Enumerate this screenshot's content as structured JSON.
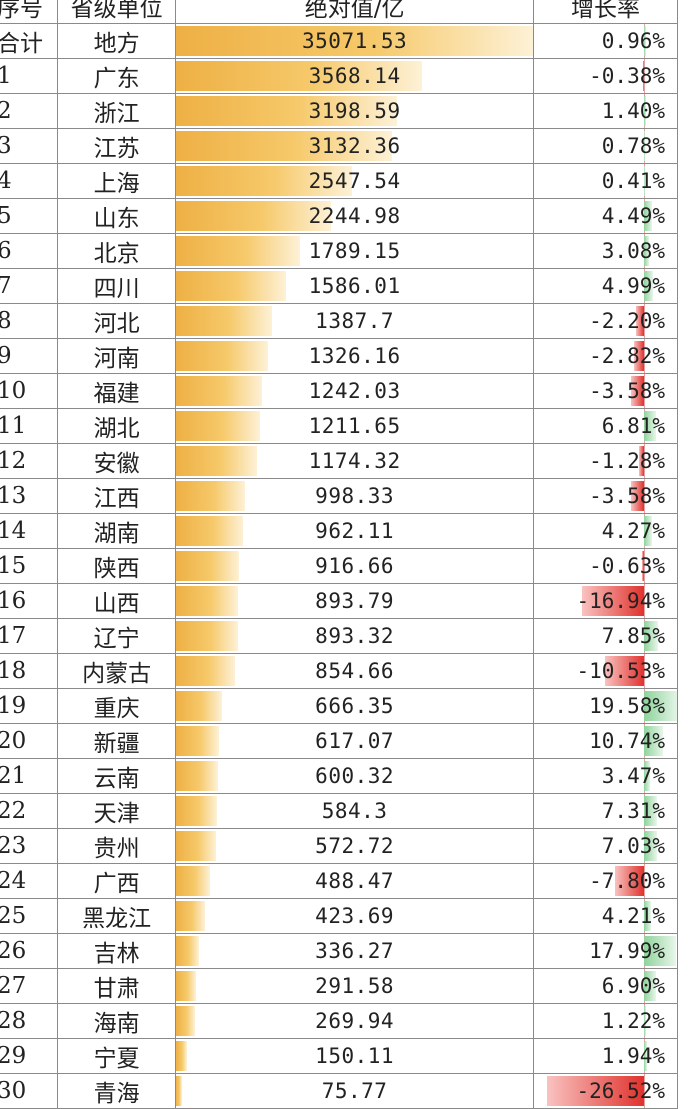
{
  "header": {
    "index": "序号",
    "province": "省级单位",
    "absolute": "绝对值/亿",
    "growth": "增长率"
  },
  "total": {
    "index": "合计",
    "province": "地方",
    "absolute": "35071.53",
    "growth": "0.96%"
  },
  "rows": [
    {
      "index": "1",
      "province": "广东",
      "absolute": "3568.14",
      "growth": "-0.38%"
    },
    {
      "index": "2",
      "province": "浙江",
      "absolute": "3198.59",
      "growth": "1.40%"
    },
    {
      "index": "3",
      "province": "江苏",
      "absolute": "3132.36",
      "growth": "0.78%"
    },
    {
      "index": "4",
      "province": "上海",
      "absolute": "2547.54",
      "growth": "0.41%"
    },
    {
      "index": "5",
      "province": "山东",
      "absolute": "2244.98",
      "growth": "4.49%"
    },
    {
      "index": "6",
      "province": "北京",
      "absolute": "1789.15",
      "growth": "3.08%"
    },
    {
      "index": "7",
      "province": "四川",
      "absolute": "1586.01",
      "growth": "4.99%"
    },
    {
      "index": "8",
      "province": "河北",
      "absolute": "1387.7",
      "growth": "-2.20%"
    },
    {
      "index": "9",
      "province": "河南",
      "absolute": "1326.16",
      "growth": "-2.82%"
    },
    {
      "index": "10",
      "province": "福建",
      "absolute": "1242.03",
      "growth": "-3.58%"
    },
    {
      "index": "11",
      "province": "湖北",
      "absolute": "1211.65",
      "growth": "6.81%"
    },
    {
      "index": "12",
      "province": "安徽",
      "absolute": "1174.32",
      "growth": "-1.28%"
    },
    {
      "index": "13",
      "province": "江西",
      "absolute": "998.33",
      "growth": "-3.58%"
    },
    {
      "index": "14",
      "province": "湖南",
      "absolute": "962.11",
      "growth": "4.27%"
    },
    {
      "index": "15",
      "province": "陕西",
      "absolute": "916.66",
      "growth": "-0.63%"
    },
    {
      "index": "16",
      "province": "山西",
      "absolute": "893.79",
      "growth": "-16.94%"
    },
    {
      "index": "17",
      "province": "辽宁",
      "absolute": "893.32",
      "growth": "7.85%"
    },
    {
      "index": "18",
      "province": "内蒙古",
      "absolute": "854.66",
      "growth": "-10.53%"
    },
    {
      "index": "19",
      "province": "重庆",
      "absolute": "666.35",
      "growth": "19.58%"
    },
    {
      "index": "20",
      "province": "新疆",
      "absolute": "617.07",
      "growth": "10.74%"
    },
    {
      "index": "21",
      "province": "云南",
      "absolute": "600.32",
      "growth": "3.47%"
    },
    {
      "index": "22",
      "province": "天津",
      "absolute": "584.3",
      "growth": "7.31%"
    },
    {
      "index": "23",
      "province": "贵州",
      "absolute": "572.72",
      "growth": "7.03%"
    },
    {
      "index": "24",
      "province": "广西",
      "absolute": "488.47",
      "growth": "-7.80%"
    },
    {
      "index": "25",
      "province": "黑龙江",
      "absolute": "423.69",
      "growth": "4.21%"
    },
    {
      "index": "26",
      "province": "吉林",
      "absolute": "336.27",
      "growth": "17.99%"
    },
    {
      "index": "27",
      "province": "甘肃",
      "absolute": "291.58",
      "growth": "6.90%"
    },
    {
      "index": "28",
      "province": "海南",
      "absolute": "269.94",
      "growth": "1.22%"
    },
    {
      "index": "29",
      "province": "宁夏",
      "absolute": "150.11",
      "growth": "1.94%"
    },
    {
      "index": "30",
      "province": "青海",
      "absolute": "75.77",
      "growth": "-26.52%"
    }
  ],
  "colors": {
    "abs_bar": "#eeb045",
    "pos_bar": "#8fd39b",
    "neg_bar": "#e0322d",
    "grid": "#8a8a8a"
  }
}
